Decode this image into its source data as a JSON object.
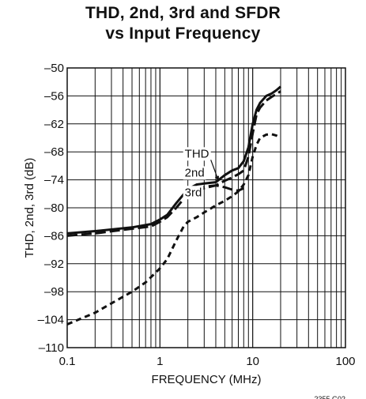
{
  "chart_data": {
    "type": "line",
    "title_lines": [
      "THD, 2nd, 3rd and SFDR",
      "vs Input Frequency"
    ],
    "xlabel": "FREQUENCY (MHz)",
    "ylabel": "THD, 2nd, 3rd (dB)",
    "x_scale": "log",
    "xlim": [
      0.1,
      100
    ],
    "ylim": [
      -110,
      -50
    ],
    "x_ticks": [
      0.1,
      1,
      10,
      100
    ],
    "x_tick_labels": [
      "0.1",
      "1",
      "10",
      "100"
    ],
    "y_ticks": [
      -50,
      -56,
      -62,
      -68,
      -74,
      -80,
      -86,
      -92,
      -98,
      -104,
      -110
    ],
    "y_tick_labels": [
      "–50",
      "–56",
      "–62",
      "–68",
      "–74",
      "–80",
      "–86",
      "–92",
      "–98",
      "–104",
      "–110"
    ],
    "grid": true,
    "figure_id": "2355 G02",
    "series": [
      {
        "name": "THD",
        "style": "solid",
        "x": [
          0.1,
          0.2,
          0.5,
          0.8,
          1,
          1.2,
          1.5,
          2,
          2.5,
          3,
          4,
          5,
          6,
          7,
          8,
          9,
          10,
          11,
          12,
          14,
          16,
          18,
          20
        ],
        "y": [
          -85.5,
          -85,
          -84.2,
          -83.5,
          -82.5,
          -81.5,
          -79,
          -76,
          -75,
          -74.8,
          -74.5,
          -73,
          -72,
          -71.5,
          -70,
          -67,
          -62,
          -59,
          -57.5,
          -56,
          -55.5,
          -54.8,
          -54
        ]
      },
      {
        "name": "2nd",
        "style": "long-dash",
        "x": [
          0.1,
          0.2,
          0.5,
          0.8,
          1,
          1.2,
          1.5,
          2,
          2.5,
          3,
          4,
          5,
          6,
          7,
          8,
          9,
          10,
          11,
          12,
          14,
          16,
          18,
          20
        ],
        "y": [
          -86,
          -85.5,
          -84.5,
          -84,
          -83,
          -82,
          -80,
          -77,
          -76,
          -75.5,
          -75.2,
          -74.2,
          -73.5,
          -72.8,
          -72,
          -69,
          -64,
          -60,
          -58.5,
          -57,
          -56.2,
          -55.6,
          -55
        ]
      },
      {
        "name": "3rd",
        "style": "short-dash",
        "x": [
          0.1,
          0.2,
          0.3,
          0.5,
          0.7,
          1,
          1.2,
          1.5,
          1.8,
          2,
          2.5,
          3,
          4,
          5,
          6,
          7,
          8,
          9,
          10,
          11,
          12,
          14,
          16,
          18,
          20
        ],
        "y": [
          -105,
          -102.5,
          -100.5,
          -98,
          -96,
          -93,
          -91,
          -87,
          -84,
          -83,
          -82,
          -81,
          -79.5,
          -78.5,
          -77.5,
          -76.5,
          -75,
          -73,
          -69,
          -66.5,
          -65,
          -64.3,
          -64.2,
          -64.5,
          -65
        ]
      },
      {
        "name": "SFDR",
        "style": "long-dash",
        "x": [
          2.4,
          3,
          4,
          5,
          6,
          7,
          8
        ],
        "y": [
          -76.5,
          -75.8,
          -75.2,
          -75.6,
          -76.1,
          -76.3,
          -75.8
        ]
      }
    ],
    "annotations": [
      {
        "text": "THD",
        "x": 1.85,
        "y": -69.2,
        "arrow_to": [
          4.3,
          -74.3
        ]
      },
      {
        "text": "2nd",
        "x": 1.85,
        "y": -73.3
      },
      {
        "text": "3rd",
        "x": 1.85,
        "y": -77.5
      }
    ]
  }
}
